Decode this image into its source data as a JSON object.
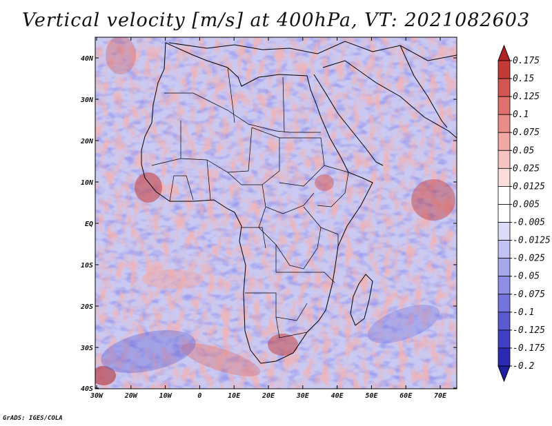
{
  "title": "Vertical velocity [m/s] at 400hPa, VT: 2021082603",
  "footer": "GrADS: IGES/COLA",
  "map": {
    "lat_labels": [
      "40N",
      "30N",
      "20N",
      "10N",
      "EQ",
      "10S",
      "20S",
      "30S",
      "40S"
    ],
    "lon_labels": [
      "30W",
      "20W",
      "10W",
      "0",
      "10E",
      "20E",
      "30E",
      "40E",
      "50E",
      "60E",
      "70E"
    ],
    "background": "#c9c9f2"
  },
  "colorbar": {
    "labels": [
      "0.175",
      "0.15",
      "0.125",
      "0.1",
      "0.075",
      "0.05",
      "0.025",
      "0.0125",
      "0.005",
      "-0.005",
      "-0.0125",
      "-0.025",
      "-0.05",
      "-0.075",
      "-0.1",
      "-0.125",
      "-0.175",
      "-0.2"
    ],
    "colors": [
      "#b22222",
      "#c43a38",
      "#d45552",
      "#e0706c",
      "#ea8c88",
      "#f2a8a4",
      "#f7c4c1",
      "#fbdedc",
      "#ffffff",
      "#ffffff",
      "#dcdcf8",
      "#c2c2f2",
      "#a8a8ec",
      "#8e8ee4",
      "#7474dc",
      "#5a5ad2",
      "#4040c6",
      "#2a2ab4",
      "#1e1e9e"
    ]
  }
}
